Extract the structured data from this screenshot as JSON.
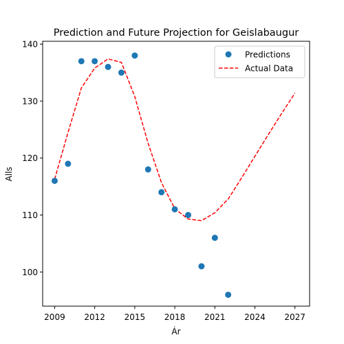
{
  "chart_data": {
    "type": "scatter",
    "title": "Prediction and Future Projection for Geislabaugur",
    "xlabel": "Ár",
    "ylabel": "Alls",
    "xlim": [
      2008.1,
      2028.1
    ],
    "ylim": [
      94,
      140.5
    ],
    "xticks": [
      2009,
      2012,
      2015,
      2018,
      2021,
      2024,
      2027
    ],
    "yticks": [
      100,
      110,
      120,
      130,
      140
    ],
    "grid": false,
    "legend_position": "top-right",
    "series": [
      {
        "name": "Predictions",
        "kind": "scatter",
        "color": "#1f77b4",
        "points": [
          [
            2009,
            116
          ],
          [
            2010,
            119
          ],
          [
            2011,
            137
          ],
          [
            2012,
            137
          ],
          [
            2013,
            136
          ],
          [
            2014,
            135
          ],
          [
            2015,
            138
          ],
          [
            2016,
            118
          ],
          [
            2017,
            114
          ],
          [
            2018,
            111
          ],
          [
            2019,
            110
          ],
          [
            2020,
            101
          ],
          [
            2021,
            106
          ],
          [
            2022,
            96
          ]
        ]
      },
      {
        "name": "Actual Data",
        "kind": "line",
        "style": "dashed",
        "color": "#ff0000",
        "points": [
          [
            2009,
            116.3
          ],
          [
            2010,
            124.5
          ],
          [
            2011,
            132.3
          ],
          [
            2012,
            135.8
          ],
          [
            2013,
            137.4
          ],
          [
            2014,
            136.8
          ],
          [
            2015,
            130.8
          ],
          [
            2016,
            122.6
          ],
          [
            2017,
            115.7
          ],
          [
            2018,
            111.1
          ],
          [
            2019,
            109.3
          ],
          [
            2020,
            109.0
          ],
          [
            2021,
            110.4
          ],
          [
            2022,
            112.8
          ],
          [
            2023,
            116.5
          ],
          [
            2024,
            120.3
          ],
          [
            2025,
            124.1
          ],
          [
            2026,
            127.8
          ],
          [
            2027,
            131.4
          ]
        ]
      }
    ]
  }
}
